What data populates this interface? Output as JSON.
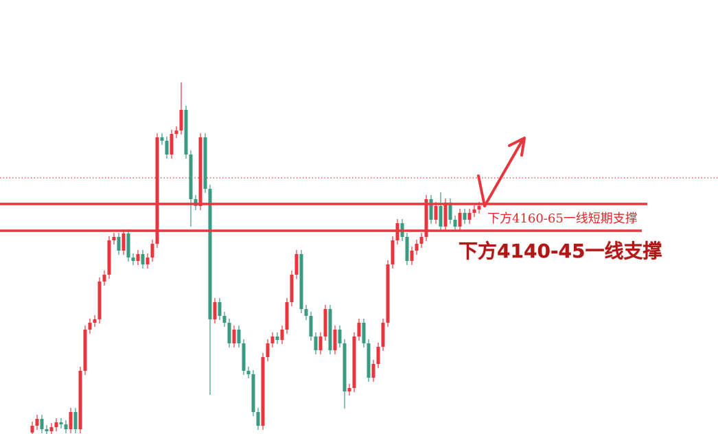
{
  "chart_data": {
    "type": "candlestick",
    "up_color": "#e8363f",
    "down_color": "#3a9a82",
    "ylim": [
      3995.5,
      4311.5
    ],
    "open": [
      3996.5,
      4001.5,
      4006.5,
      3999,
      3997.5,
      4000.5,
      4004,
      4002.5,
      3999,
      4011.5,
      3999,
      4041.5,
      4071.5,
      4076.5,
      4079,
      4106.5,
      4111.5,
      4136.5,
      4139,
      4129,
      4141.5,
      4124,
      4121.5,
      4126.5,
      4119,
      4124,
      4134,
      4211.5,
      4209,
      4199,
      4214,
      4216.5,
      4231.5,
      4199,
      4166.5,
      4161.5,
      4211.5,
      4174,
      4079,
      4091.5,
      4081.5,
      4076.5,
      4061.5,
      4071.5,
      4061.5,
      4041.5,
      4039,
      4011.5,
      4001.5,
      4051.5,
      4061.5,
      4066.5,
      4064,
      4071.5,
      4091.5,
      4111.5,
      4126.5,
      4086.5,
      4081.5,
      4066.5,
      4056.5,
      4066.5,
      4086.5,
      4056.5,
      4071.5,
      4061.5,
      4026.5,
      4029,
      4066.5,
      4076.5,
      4061.5,
      4036.5,
      4046.5,
      4059,
      4076.5,
      4119,
      4136.5,
      4149,
      4139,
      4121.5,
      4129,
      4134,
      4139,
      4166.5,
      4151.5,
      4161.5,
      4146.5,
      4164,
      4151.5,
      4146.5,
      4156.5,
      4151.5,
      4156.5,
      4159
    ],
    "high": [
      4004.5,
      4009.5,
      4009.5,
      4002,
      4003.5,
      4007,
      4007,
      4005.5,
      4014.5,
      4014.5,
      4044.5,
      4074.5,
      4079.5,
      4082,
      4109.5,
      4114.5,
      4139.5,
      4142,
      4142,
      4144.5,
      4144.5,
      4127,
      4129.5,
      4129.5,
      4127,
      4137,
      4214.5,
      4214.5,
      4212,
      4217,
      4219.5,
      4251.5,
      4234.5,
      4202,
      4169.5,
      4214.5,
      4214.5,
      4177,
      4094.5,
      4094.5,
      4084.5,
      4079.5,
      4074.5,
      4074.5,
      4064.5,
      4044.5,
      4042,
      4014.5,
      4054.5,
      4064.5,
      4069.5,
      4069.5,
      4074.5,
      4094.5,
      4114.5,
      4129.5,
      4129.5,
      4089.5,
      4084.5,
      4069.5,
      4069.5,
      4089.5,
      4089.5,
      4074.5,
      4074.5,
      4064.5,
      4032,
      4069.5,
      4079.5,
      4079.5,
      4064.5,
      4049.5,
      4062,
      4079.5,
      4122,
      4139.5,
      4152,
      4152,
      4142,
      4132,
      4137,
      4142,
      4169.5,
      4169.5,
      4164.5,
      4171.5,
      4167,
      4167,
      4154.5,
      4159.5,
      4159.5,
      4159.5,
      4162,
      4164.5
    ],
    "low": [
      3993.5,
      3998.5,
      3996,
      3994.5,
      3994.5,
      3997.5,
      3999.5,
      3996,
      3996,
      3996,
      3996,
      4038.5,
      4068.5,
      4073.5,
      4076,
      4103.5,
      4108.5,
      4133.5,
      4126,
      4126,
      4121,
      4118.5,
      4118.5,
      4116,
      4116,
      4121,
      4131,
      4206,
      4196,
      4196,
      4211,
      4213.5,
      4196,
      4146.5,
      4158.5,
      4158.5,
      4171,
      4024,
      4076,
      4078.5,
      4073.5,
      4058.5,
      4058.5,
      4058.5,
      4038.5,
      4036,
      4008.5,
      3998.5,
      3998.5,
      4048.5,
      4058.5,
      4061,
      4061,
      4068.5,
      4088.5,
      4108.5,
      4083.5,
      4078.5,
      4063.5,
      4053.5,
      4053.5,
      4063.5,
      4053.5,
      4053.5,
      4058.5,
      4014,
      4023.5,
      4026,
      4063.5,
      4058.5,
      4033.5,
      4033.5,
      4043.5,
      4056,
      4073.5,
      4116,
      4133.5,
      4136,
      4118.5,
      4118.5,
      4126,
      4131,
      4136,
      4148.5,
      4148.5,
      4143.5,
      4143.5,
      4148.5,
      4143.5,
      4143.5,
      4148.5,
      4148.5,
      4153.5,
      4156
    ],
    "close": [
      4001.5,
      4006.5,
      3999,
      3997.5,
      4000.5,
      4004,
      4002.5,
      3999,
      4011.5,
      3999,
      4041.5,
      4071.5,
      4076.5,
      4079,
      4106.5,
      4111.5,
      4136.5,
      4139,
      4129,
      4141.5,
      4124,
      4121.5,
      4126.5,
      4119,
      4124,
      4134,
      4211.5,
      4209,
      4199,
      4214,
      4216.5,
      4231.5,
      4199,
      4166.5,
      4161.5,
      4211.5,
      4174,
      4079,
      4091.5,
      4081.5,
      4076.5,
      4061.5,
      4071.5,
      4061.5,
      4041.5,
      4039,
      4011.5,
      4001.5,
      4051.5,
      4061.5,
      4066.5,
      4064,
      4071.5,
      4091.5,
      4111.5,
      4126.5,
      4086.5,
      4081.5,
      4066.5,
      4056.5,
      4066.5,
      4086.5,
      4056.5,
      4071.5,
      4061.5,
      4026.5,
      4029,
      4066.5,
      4076.5,
      4061.5,
      4036.5,
      4046.5,
      4059,
      4076.5,
      4119,
      4136.5,
      4149,
      4139,
      4121.5,
      4129,
      4134,
      4139,
      4166.5,
      4151.5,
      4161.5,
      4146.5,
      4164,
      4151.5,
      4146.5,
      4156.5,
      4151.5,
      4156.5,
      4159,
      4161.5
    ],
    "last_price": 4182,
    "lines": [
      {
        "value": 4163,
        "color": "#e8363f"
      },
      {
        "value": 4143.5,
        "color": "#e8363f"
      }
    ],
    "annotations": [
      "下方4160-65一线短期支撑",
      "下方4140-45一线支撑"
    ]
  }
}
